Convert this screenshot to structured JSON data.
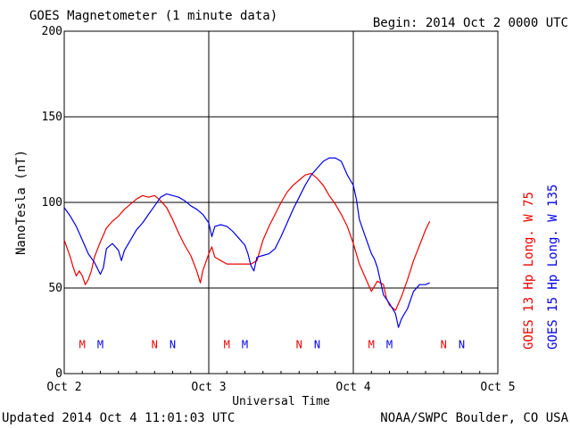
{
  "header": {
    "title": "GOES Magnetometer (1 minute data)",
    "begin": "Begin:  2014 Oct 2 0000 UTC"
  },
  "footer": {
    "updated": "Updated 2014 Oct  4 11:01:03 UTC",
    "credit": "NOAA/SWPC Boulder, CO USA"
  },
  "colors": {
    "red": "#ee0000",
    "blue": "#0000ee",
    "grid": "#000000"
  },
  "chart_data": {
    "type": "line",
    "title": "GOES Magnetometer (1 minute data)",
    "xlabel": "Universal Time",
    "ylabel": "NanoTesla (nT)",
    "x_unit": "hours since 2014 Oct 2 0000 UTC",
    "xlim": [
      0,
      72
    ],
    "ylim": [
      0,
      200
    ],
    "x_ticks": [
      {
        "x": 0,
        "label": "Oct 2"
      },
      {
        "x": 24,
        "label": "Oct 3"
      },
      {
        "x": 48,
        "label": "Oct 4"
      },
      {
        "x": 72,
        "label": "Oct 5"
      }
    ],
    "y_ticks": [
      0,
      50,
      100,
      150,
      200
    ],
    "grid": true,
    "series": [
      {
        "name": "GOES 13 Hp  Long. W 75",
        "color": "#ee0000",
        "points": [
          [
            0,
            78
          ],
          [
            1,
            68
          ],
          [
            1.5,
            62
          ],
          [
            2,
            57
          ],
          [
            2.5,
            60
          ],
          [
            3,
            57
          ],
          [
            3.5,
            52
          ],
          [
            4,
            55
          ],
          [
            4.5,
            60
          ],
          [
            5,
            68
          ],
          [
            6,
            77
          ],
          [
            7,
            85
          ],
          [
            8,
            89
          ],
          [
            9,
            92
          ],
          [
            10,
            96
          ],
          [
            11,
            99
          ],
          [
            12,
            102
          ],
          [
            13,
            104
          ],
          [
            14,
            103
          ],
          [
            15,
            104
          ],
          [
            16,
            101
          ],
          [
            17,
            97
          ],
          [
            18,
            90
          ],
          [
            19,
            82
          ],
          [
            20,
            75
          ],
          [
            21,
            69
          ],
          [
            22,
            60
          ],
          [
            22.6,
            53
          ],
          [
            23,
            60
          ],
          [
            24,
            70
          ],
          [
            24.5,
            74
          ],
          [
            25,
            68
          ],
          [
            26,
            66
          ],
          [
            27,
            64
          ],
          [
            28,
            64
          ],
          [
            29,
            64
          ],
          [
            30,
            64
          ],
          [
            31,
            64
          ],
          [
            32,
            66
          ],
          [
            32.5,
            72
          ],
          [
            33,
            78
          ],
          [
            34,
            86
          ],
          [
            35,
            93
          ],
          [
            36,
            100
          ],
          [
            37,
            106
          ],
          [
            38,
            110
          ],
          [
            39,
            113
          ],
          [
            40,
            116
          ],
          [
            41,
            117
          ],
          [
            42,
            114
          ],
          [
            43,
            110
          ],
          [
            44,
            104
          ],
          [
            45,
            99
          ],
          [
            46,
            93
          ],
          [
            47,
            86
          ],
          [
            48,
            76
          ],
          [
            49,
            64
          ],
          [
            50,
            56
          ],
          [
            50.5,
            52
          ],
          [
            51,
            48
          ],
          [
            52,
            54
          ],
          [
            53,
            52
          ],
          [
            53.5,
            44
          ],
          [
            54,
            40
          ],
          [
            55,
            37
          ],
          [
            56,
            45
          ],
          [
            57,
            55
          ],
          [
            58,
            66
          ],
          [
            59,
            75
          ],
          [
            60,
            84
          ],
          [
            60.7,
            89
          ]
        ]
      },
      {
        "name": "GOES 15 Hp  Long. W 135",
        "color": "#0000ee",
        "points": [
          [
            0,
            97
          ],
          [
            1,
            92
          ],
          [
            2,
            86
          ],
          [
            3,
            78
          ],
          [
            4,
            70
          ],
          [
            5,
            65
          ],
          [
            6,
            58
          ],
          [
            6.5,
            62
          ],
          [
            7,
            73
          ],
          [
            8,
            76
          ],
          [
            9,
            72
          ],
          [
            9.5,
            66
          ],
          [
            10,
            72
          ],
          [
            11,
            78
          ],
          [
            12,
            84
          ],
          [
            13,
            88
          ],
          [
            14,
            93
          ],
          [
            15,
            98
          ],
          [
            16,
            103
          ],
          [
            17,
            105
          ],
          [
            18,
            104
          ],
          [
            19,
            103
          ],
          [
            20,
            101
          ],
          [
            21,
            98
          ],
          [
            22,
            96
          ],
          [
            23,
            93
          ],
          [
            24,
            88
          ],
          [
            24.5,
            80
          ],
          [
            25,
            86
          ],
          [
            26,
            87
          ],
          [
            27,
            86
          ],
          [
            28,
            83
          ],
          [
            29,
            79
          ],
          [
            30,
            75
          ],
          [
            30.5,
            70
          ],
          [
            31,
            63
          ],
          [
            31.5,
            60
          ],
          [
            32,
            68
          ],
          [
            33,
            69
          ],
          [
            34,
            70
          ],
          [
            35,
            73
          ],
          [
            36,
            80
          ],
          [
            37,
            88
          ],
          [
            38,
            96
          ],
          [
            39,
            103
          ],
          [
            40,
            110
          ],
          [
            41,
            116
          ],
          [
            42,
            120
          ],
          [
            43,
            124
          ],
          [
            44,
            126
          ],
          [
            45,
            126
          ],
          [
            46,
            124
          ],
          [
            47,
            116
          ],
          [
            48,
            110
          ],
          [
            48.5,
            102
          ],
          [
            49,
            90
          ],
          [
            50,
            80
          ],
          [
            51,
            70
          ],
          [
            51.5,
            67
          ],
          [
            52,
            62
          ],
          [
            52.5,
            54
          ],
          [
            53,
            46
          ],
          [
            54,
            41
          ],
          [
            55,
            35
          ],
          [
            55.5,
            27
          ],
          [
            56,
            32
          ],
          [
            57,
            38
          ],
          [
            58,
            48
          ],
          [
            59,
            52
          ],
          [
            60,
            52
          ],
          [
            60.7,
            53
          ]
        ]
      }
    ],
    "markers": [
      {
        "label": "M",
        "x": 3,
        "color": "#ee0000"
      },
      {
        "label": "M",
        "x": 6,
        "color": "#0000ee"
      },
      {
        "label": "N",
        "x": 15,
        "color": "#ee0000"
      },
      {
        "label": "N",
        "x": 18,
        "color": "#0000ee"
      },
      {
        "label": "M",
        "x": 27,
        "color": "#ee0000"
      },
      {
        "label": "M",
        "x": 30,
        "color": "#0000ee"
      },
      {
        "label": "N",
        "x": 39,
        "color": "#ee0000"
      },
      {
        "label": "N",
        "x": 42,
        "color": "#0000ee"
      },
      {
        "label": "M",
        "x": 51,
        "color": "#ee0000"
      },
      {
        "label": "M",
        "x": 54,
        "color": "#0000ee"
      },
      {
        "label": "N",
        "x": 63,
        "color": "#ee0000"
      },
      {
        "label": "N",
        "x": 66,
        "color": "#0000ee"
      }
    ],
    "marker_level": 17
  }
}
